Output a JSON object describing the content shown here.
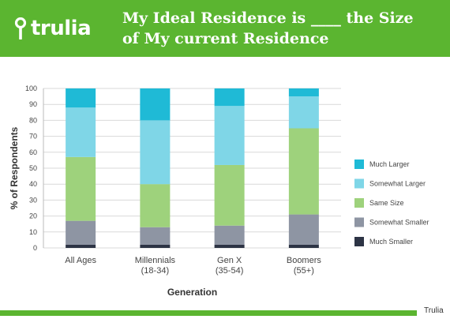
{
  "brand": {
    "logo_text": "trulia",
    "logo_icon": "location-pin-icon",
    "color": "#5bb530"
  },
  "headline": {
    "line1": "My Ideal Residence is ____ the Size",
    "line2": "of My current Residence"
  },
  "credit": "Trulia",
  "chart_data": {
    "type": "bar",
    "stacked": true,
    "categories": [
      [
        "All Ages"
      ],
      [
        "Millennials",
        "(18-34)"
      ],
      [
        "Gen X",
        "(35-54)"
      ],
      [
        "Boomers",
        "(55+)"
      ]
    ],
    "series": [
      {
        "name": "Much Smaller",
        "color": "#2d3445",
        "values": [
          2,
          2,
          2,
          2
        ]
      },
      {
        "name": "Somewhat Smaller",
        "color": "#8e95a3",
        "values": [
          15,
          11,
          12,
          19
        ]
      },
      {
        "name": "Same Size",
        "color": "#9ed27c",
        "values": [
          40,
          27,
          38,
          54
        ]
      },
      {
        "name": "Somewhat Larger",
        "color": "#7fd6e7",
        "values": [
          31,
          40,
          37,
          20
        ]
      },
      {
        "name": "Much Larger",
        "color": "#1fbad6",
        "values": [
          12,
          20,
          11,
          5
        ]
      }
    ],
    "legend_order": [
      "Much Larger",
      "Somewhat Larger",
      "Same Size",
      "Somewhat Smaller",
      "Much Smaller"
    ],
    "legend_position": "right",
    "xlabel": "Generation",
    "ylabel": "% of Respondents",
    "ylim": [
      0,
      100
    ],
    "yticks": [
      0,
      10,
      20,
      30,
      40,
      50,
      60,
      70,
      80,
      90,
      100
    ],
    "grid": true
  }
}
